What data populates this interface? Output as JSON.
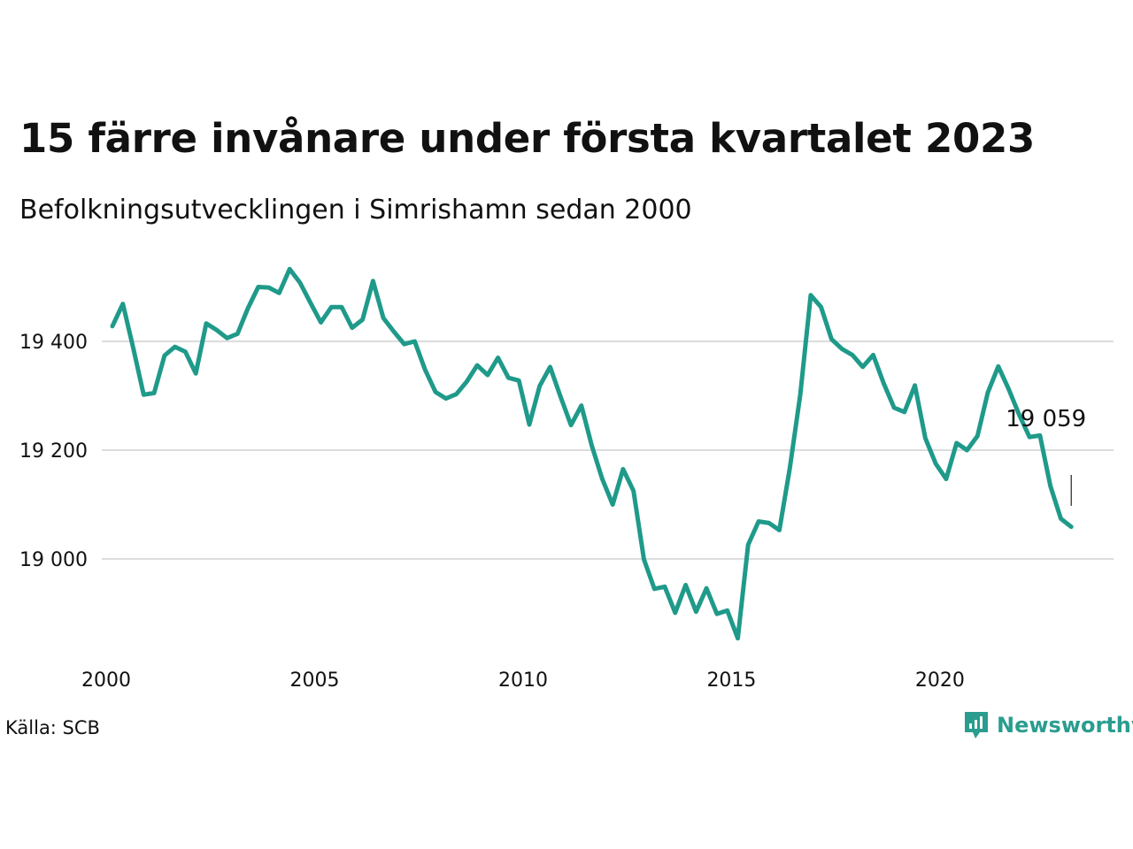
{
  "title": "15 färre invånare under första kvartalet 2023",
  "subtitle": "Befolkningsutvecklingen i Simrishamn sedan 2000",
  "source": "Källa: SCB",
  "brand": {
    "name": "Newsworthy",
    "icon": "newsworthy-logo-icon",
    "color": "#2a9d8f"
  },
  "chart_data": {
    "type": "line",
    "title": "15 färre invånare under första kvartalet 2023",
    "xlabel": "",
    "ylabel": "",
    "xlim": [
      2000,
      2023.25
    ],
    "ylim": [
      18850,
      19540
    ],
    "grid": true,
    "x_ticks": [
      2000,
      2005,
      2010,
      2015,
      2020
    ],
    "x_tick_labels": [
      "2000",
      "2005",
      "2010",
      "2015",
      "2020"
    ],
    "y_ticks": [
      19000,
      19200,
      19400
    ],
    "y_tick_labels": [
      "19 000",
      "19 200",
      "19 400"
    ],
    "line_color": "#1f9a8a",
    "end_label": "19 059",
    "x": [
      2000.0,
      2000.25,
      2000.5,
      2000.75,
      2001.0,
      2001.25,
      2001.5,
      2001.75,
      2002.0,
      2002.25,
      2002.5,
      2002.75,
      2003.0,
      2003.25,
      2003.5,
      2003.75,
      2004.0,
      2004.25,
      2004.5,
      2004.75,
      2005.0,
      2005.25,
      2005.5,
      2005.75,
      2006.0,
      2006.25,
      2006.5,
      2006.75,
      2007.0,
      2007.25,
      2007.5,
      2007.75,
      2008.0,
      2008.25,
      2008.5,
      2008.75,
      2009.0,
      2009.25,
      2009.5,
      2009.75,
      2010.0,
      2010.25,
      2010.5,
      2010.75,
      2011.0,
      2011.25,
      2011.5,
      2011.75,
      2012.0,
      2012.25,
      2012.5,
      2012.75,
      2013.0,
      2013.25,
      2013.5,
      2013.75,
      2014.0,
      2014.25,
      2014.5,
      2014.75,
      2015.0,
      2015.25,
      2015.5,
      2015.75,
      2016.0,
      2016.25,
      2016.5,
      2016.75,
      2017.0,
      2017.25,
      2017.5,
      2017.75,
      2018.0,
      2018.25,
      2018.5,
      2018.75,
      2019.0,
      2019.25,
      2019.5,
      2019.75,
      2020.0,
      2020.25,
      2020.5,
      2020.75,
      2021.0,
      2021.25,
      2021.5,
      2021.75,
      2022.0,
      2022.25,
      2022.5,
      2022.75,
      2023.0
    ],
    "y": [
      19428,
      19469,
      19388,
      19302,
      19305,
      19374,
      19390,
      19381,
      19341,
      19433,
      19421,
      19406,
      19414,
      19461,
      19500,
      19499,
      19489,
      19533,
      19508,
      19471,
      19435,
      19463,
      19463,
      19425,
      19440,
      19511,
      19443,
      19418,
      19395,
      19400,
      19348,
      19307,
      19295,
      19303,
      19326,
      19356,
      19338,
      19370,
      19333,
      19328,
      19247,
      19318,
      19353,
      19298,
      19246,
      19282,
      19208,
      19147,
      19100,
      19165,
      19125,
      18999,
      18945,
      18949,
      18901,
      18952,
      18903,
      18946,
      18899,
      18905,
      18854,
      19026,
      19069,
      19066,
      19053,
      19167,
      19302,
      19485,
      19463,
      19404,
      19386,
      19375,
      19353,
      19375,
      19323,
      19278,
      19270,
      19319,
      19222,
      19175,
      19147,
      19213,
      19200,
      19226,
      19306,
      19354,
      19312,
      19265,
      19224,
      19227,
      19134,
      19074,
      19059
    ]
  }
}
